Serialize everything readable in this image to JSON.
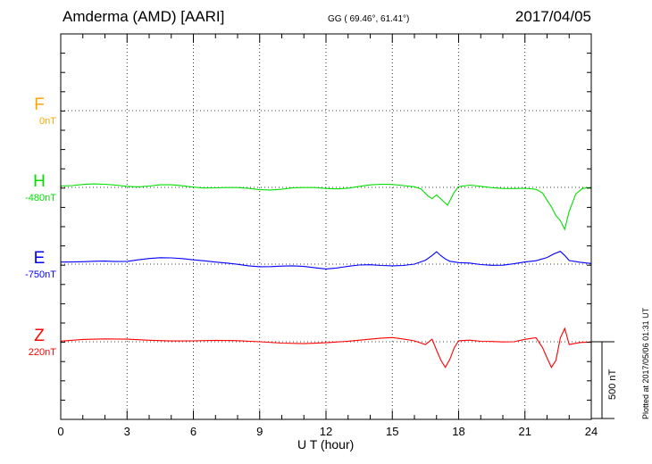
{
  "header": {
    "station": "Amderma (AMD)  [AARI]",
    "coords": "GG ( 69.46°,  61.41°)",
    "date": "2017/04/05"
  },
  "plotted_note": "Plotted at 2017/05/06 01:31  UT",
  "scale_label": "500 nT",
  "chart_data": {
    "type": "line",
    "title": "Amderma (AMD)  [AARI]",
    "xlabel": "U T (hour)",
    "ylabel": "",
    "xlim": [
      0,
      24
    ],
    "x_ticks": [
      "0",
      "3",
      "6",
      "9",
      "12",
      "15",
      "18",
      "21",
      "24"
    ],
    "grid": true,
    "scale_bar_nT": 500,
    "series": [
      {
        "name": "F",
        "baseline": "0nT",
        "color": "#ffa500",
        "offset_nT": 0,
        "x": [],
        "values": []
      },
      {
        "name": "H",
        "baseline": "-480nT",
        "color": "#00e000",
        "offset_nT": -480,
        "x": [
          0,
          0.5,
          1,
          1.5,
          2,
          2.5,
          3,
          3.5,
          4,
          4.5,
          5,
          5.5,
          6,
          6.5,
          7,
          7.5,
          8,
          8.5,
          9,
          9.5,
          10,
          10.5,
          11,
          11.5,
          12,
          12.5,
          13,
          13.5,
          14,
          14.5,
          15,
          15.5,
          16,
          16.3,
          16.6,
          16.8,
          17.0,
          17.2,
          17.5,
          17.8,
          18,
          18.5,
          19,
          19.5,
          20,
          20.5,
          21,
          21.5,
          21.8,
          22,
          22.2,
          22.4,
          22.6,
          22.8,
          23,
          23.3,
          23.6,
          24
        ],
        "values": [
          15,
          18,
          20,
          17,
          14,
          13,
          12,
          10,
          11,
          12,
          10,
          8,
          6,
          3,
          0,
          -5,
          -8,
          -10,
          -12,
          -10,
          -8,
          -5,
          -8,
          -6,
          -5,
          -3,
          0,
          5,
          10,
          15,
          20,
          18,
          10,
          -10,
          -60,
          -80,
          -50,
          -70,
          -110,
          -30,
          0,
          8,
          5,
          3,
          0,
          -5,
          -10,
          -20,
          -40,
          -80,
          -120,
          -180,
          -220,
          -280,
          -160,
          -40,
          0,
          5
        ]
      },
      {
        "name": "E",
        "baseline": "-750nT",
        "color": "#0000ff",
        "offset_nT": -750,
        "x": [
          0,
          0.5,
          1,
          1.5,
          2,
          2.5,
          3,
          3.5,
          4,
          4.5,
          5,
          5.5,
          6,
          6.5,
          7,
          7.5,
          8,
          8.5,
          9,
          9.5,
          10,
          10.5,
          11,
          11.5,
          12,
          12.5,
          13,
          13.5,
          14,
          14.5,
          15,
          15.5,
          16,
          16.5,
          16.8,
          17.0,
          17.2,
          17.4,
          17.6,
          18,
          18.5,
          19,
          19.5,
          20,
          20.5,
          21,
          21.5,
          22,
          22.3,
          22.6,
          22.8,
          23,
          23.5,
          24
        ],
        "values": [
          20,
          15,
          10,
          12,
          18,
          22,
          25,
          30,
          32,
          35,
          38,
          40,
          35,
          25,
          10,
          0,
          -5,
          -8,
          -10,
          -12,
          -15,
          -18,
          -20,
          -22,
          -25,
          -20,
          -15,
          -12,
          -10,
          -8,
          -5,
          -3,
          0,
          20,
          50,
          80,
          60,
          40,
          20,
          5,
          0,
          -5,
          -3,
          0,
          5,
          10,
          15,
          40,
          70,
          90,
          60,
          20,
          5,
          0
        ]
      },
      {
        "name": "Z",
        "baseline": "220nT",
        "color": "#ff0000",
        "offset_nT": 220,
        "x": [
          0,
          1,
          2,
          3,
          4,
          5,
          6,
          7,
          8,
          9,
          10,
          11,
          12,
          13,
          14,
          14.5,
          15,
          15.5,
          16,
          16.5,
          16.8,
          17.0,
          17.2,
          17.4,
          17.6,
          17.8,
          18,
          18.5,
          19,
          19.5,
          20,
          20.5,
          21,
          21.5,
          21.8,
          22.0,
          22.2,
          22.4,
          22.6,
          22.8,
          23,
          23.5,
          24
        ],
        "values": [
          5,
          10,
          12,
          15,
          15,
          12,
          8,
          5,
          0,
          -3,
          -5,
          -5,
          -3,
          0,
          10,
          20,
          30,
          25,
          10,
          -20,
          10,
          -60,
          -120,
          -160,
          -110,
          -40,
          0,
          5,
          3,
          8,
          5,
          0,
          10,
          20,
          -40,
          -100,
          -160,
          -120,
          20,
          80,
          -20,
          0,
          5
        ]
      }
    ]
  }
}
